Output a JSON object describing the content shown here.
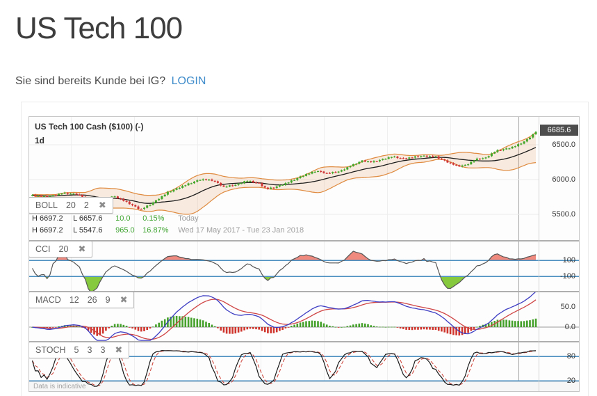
{
  "header": {
    "title": "US Tech 100",
    "subtitle": "Sie sind bereits Kunde bei IG?",
    "login_label": "LOGIN"
  },
  "icons": {
    "close": "✖"
  },
  "chart_data": {
    "type": "candlestick",
    "title": "US Tech 100 Cash ($100) (-)",
    "interval": "1d",
    "period_label": "Wed 17 May 2017 - Tue 23 Jan 2018",
    "last_price": "6685.6",
    "price_ticks": [
      {
        "label": "6500.0",
        "value": 6500
      },
      {
        "label": "6000.0",
        "value": 6000
      },
      {
        "label": "5500.0",
        "value": 5500
      }
    ],
    "ylim": [
      5130,
      6900
    ],
    "num_candles": 172,
    "session_divider_fraction": 0.966,
    "close_waypoints": [
      [
        0,
        5775
      ],
      [
        0.03,
        5750
      ],
      [
        0.06,
        5805
      ],
      [
        0.09,
        5790
      ],
      [
        0.105,
        5735
      ],
      [
        0.12,
        5620
      ],
      [
        0.13,
        5585
      ],
      [
        0.145,
        5695
      ],
      [
        0.16,
        5765
      ],
      [
        0.175,
        5720
      ],
      [
        0.195,
        5645
      ],
      [
        0.215,
        5570
      ],
      [
        0.235,
        5645
      ],
      [
        0.27,
        5820
      ],
      [
        0.3,
        5910
      ],
      [
        0.335,
        6005
      ],
      [
        0.36,
        5985
      ],
      [
        0.38,
        5895
      ],
      [
        0.405,
        5925
      ],
      [
        0.425,
        5985
      ],
      [
        0.45,
        5945
      ],
      [
        0.465,
        5865
      ],
      [
        0.48,
        5885
      ],
      [
        0.51,
        5965
      ],
      [
        0.54,
        6065
      ],
      [
        0.565,
        6125
      ],
      [
        0.585,
        6090
      ],
      [
        0.61,
        6115
      ],
      [
        0.63,
        6190
      ],
      [
        0.655,
        6270
      ],
      [
        0.675,
        6250
      ],
      [
        0.695,
        6290
      ],
      [
        0.715,
        6330
      ],
      [
        0.735,
        6300
      ],
      [
        0.755,
        6320
      ],
      [
        0.775,
        6340
      ],
      [
        0.8,
        6330
      ],
      [
        0.825,
        6250
      ],
      [
        0.845,
        6190
      ],
      [
        0.862,
        6210
      ],
      [
        0.88,
        6290
      ],
      [
        0.9,
        6310
      ],
      [
        0.92,
        6410
      ],
      [
        0.94,
        6440
      ],
      [
        0.955,
        6470
      ],
      [
        0.968,
        6510
      ],
      [
        0.98,
        6560
      ],
      [
        0.99,
        6620
      ],
      [
        1,
        6686
      ]
    ],
    "info_rows": [
      {
        "high": "H 6697.2",
        "low": "L 6657.6",
        "change": "10.0",
        "change_pct": "0.15%",
        "period": "Today"
      },
      {
        "high": "H 6697.2",
        "low": "L 5547.6",
        "change": "965.0",
        "change_pct": "16.87%",
        "period": "Wed 17 May 2017 - Tue 23 Jan 2018"
      }
    ],
    "indicators": {
      "boll": {
        "label": "BOLL",
        "params": [
          "20",
          "2"
        ]
      },
      "cci": {
        "label": "CCI",
        "params": [
          "20"
        ],
        "levels": [
          100,
          -100
        ],
        "ticks": [
          "100",
          "-100"
        ]
      },
      "macd": {
        "label": "MACD",
        "params": [
          "12",
          "26",
          "9"
        ],
        "tick_values": [
          50,
          0
        ],
        "ticks": [
          "50.0",
          "0.0"
        ]
      },
      "stoch": {
        "label": "STOCH",
        "params": [
          "5",
          "3",
          "3"
        ],
        "levels": [
          80,
          20
        ],
        "ticks": [
          "80",
          "20"
        ]
      }
    },
    "footer_note": "Data is indicative"
  },
  "colors": {
    "candle_up": "#42a62a",
    "candle_down": "#cf3434",
    "band_line": "#df8a3e",
    "band_fill": "rgba(223,139,66,0.16)",
    "mid_line": "#1c1c1c",
    "level_line": "#4a8fc0",
    "cci_line": "#555555",
    "cci_above": "#f0897e",
    "cci_below": "#86c93f",
    "macd_line": "#3d3dc4",
    "macd_signal": "#d04545",
    "hist_up": "#46a12c",
    "hist_down": "#cf352c",
    "stoch_k": "#1a1a1a",
    "stoch_d": "#d04a40",
    "zero_line": "#9a9a9a",
    "grid": "#ececec",
    "up_text": "#3da32f",
    "login": "#3f8ccb",
    "badge_bg": "#4d4d4d"
  }
}
